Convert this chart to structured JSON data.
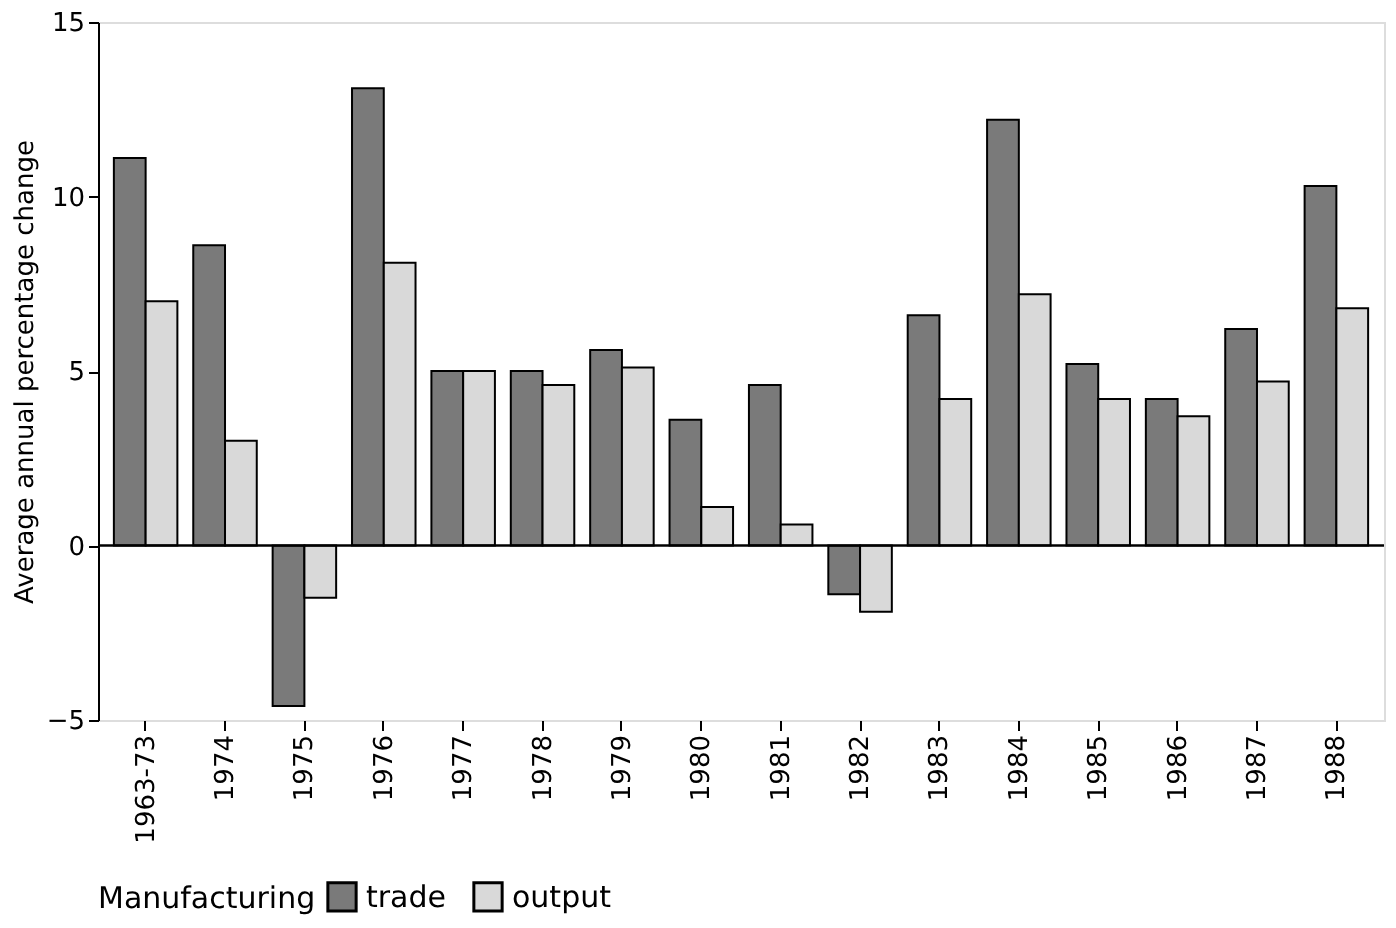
{
  "chart_data": {
    "type": "bar",
    "ylabel": "Average annual percentage change",
    "legend_title": "Manufacturing",
    "legend": "bottom",
    "grid": false,
    "categories": [
      "1963-73",
      "1974",
      "1975",
      "1976",
      "1977",
      "1978",
      "1979",
      "1980",
      "1981",
      "1982",
      "1983",
      "1984",
      "1985",
      "1986",
      "1987",
      "1988"
    ],
    "series": [
      {
        "name": "trade",
        "color": "#7a7a7a",
        "values": [
          11.1,
          8.6,
          -4.6,
          13.1,
          5.0,
          5.0,
          5.6,
          3.6,
          4.6,
          -1.4,
          6.6,
          12.2,
          5.2,
          4.2,
          6.2,
          10.3
        ]
      },
      {
        "name": "output",
        "color": "#d9d9d9",
        "values": [
          7.0,
          3.0,
          -1.5,
          8.1,
          5.0,
          4.6,
          5.1,
          1.1,
          0.6,
          -1.9,
          4.2,
          7.2,
          4.2,
          3.7,
          4.7,
          6.8
        ]
      }
    ],
    "ylim": [
      -5,
      15
    ],
    "yticks": [
      -5,
      0,
      5,
      10,
      15
    ],
    "ref_lines": [
      {
        "axis": "y",
        "value": 0
      }
    ]
  }
}
